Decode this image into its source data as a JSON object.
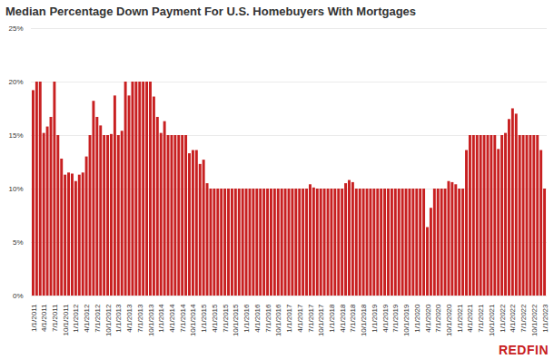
{
  "chart_data": {
    "type": "bar",
    "title": "Median Percentage Down Payment For U.S. Homebuyers With Mortgages",
    "brand": "REDFIN",
    "color": "#c82021",
    "grid": true,
    "ylim": [
      0,
      25
    ],
    "yticks": [
      {
        "value": 0,
        "label": "0%"
      },
      {
        "value": 5,
        "label": "5%"
      },
      {
        "value": 10,
        "label": "10%"
      },
      {
        "value": 15,
        "label": "15%"
      },
      {
        "value": 20,
        "label": "20%"
      },
      {
        "value": 25,
        "label": "25%"
      }
    ],
    "categories": [
      "1/1/2011",
      null,
      null,
      "4/1/2011",
      null,
      null,
      "7/1/2011",
      null,
      null,
      "10/1/2011",
      null,
      null,
      "1/1/2012",
      null,
      null,
      "4/1/2012",
      null,
      null,
      "7/1/2012",
      null,
      null,
      "10/1/2012",
      null,
      null,
      "1/1/2013",
      null,
      null,
      "4/1/2013",
      null,
      null,
      "7/1/2013",
      null,
      null,
      "10/1/2013",
      null,
      null,
      "1/1/2014",
      null,
      null,
      "4/1/2014",
      null,
      null,
      "7/1/2014",
      null,
      null,
      "10/1/2014",
      null,
      null,
      "1/1/2015",
      null,
      null,
      "4/1/2015",
      null,
      null,
      "7/1/2015",
      null,
      null,
      "10/1/2015",
      null,
      null,
      "1/1/2016",
      null,
      null,
      "4/1/2016",
      null,
      null,
      "7/1/2016",
      null,
      null,
      "10/1/2016",
      null,
      null,
      "1/1/2017",
      null,
      null,
      "4/1/2017",
      null,
      null,
      "7/1/2017",
      null,
      null,
      "10/1/2017",
      null,
      null,
      "1/1/2018",
      null,
      null,
      "4/1/2018",
      null,
      null,
      "7/1/2018",
      null,
      null,
      "10/1/2018",
      null,
      null,
      "1/1/2019",
      null,
      null,
      "4/1/2019",
      null,
      null,
      "7/1/2019",
      null,
      null,
      "10/1/2019",
      null,
      null,
      "1/1/2020",
      null,
      null,
      "4/1/2020",
      null,
      null,
      "7/1/2020",
      null,
      null,
      "10/1/2020",
      null,
      null,
      "1/1/2021",
      null,
      null,
      "4/1/2021",
      null,
      null,
      "7/1/2021",
      null,
      null,
      "10/1/2021",
      null,
      null,
      "1/1/2022",
      null,
      null,
      "4/1/2022",
      null,
      null,
      "7/1/2022",
      null,
      null,
      "10/1/2022",
      null,
      null,
      "1/1/2023"
    ],
    "values": [
      19.2,
      20,
      20,
      15.2,
      15.8,
      16.7,
      20,
      15,
      12.8,
      11.3,
      11.5,
      11.4,
      10.7,
      11.3,
      11.5,
      13,
      15,
      18.2,
      16.7,
      15.9,
      15,
      15,
      15.1,
      18.7,
      15,
      15.4,
      20,
      18.7,
      20,
      20,
      20,
      20,
      20,
      20,
      18.6,
      16.7,
      15.2,
      16.3,
      15,
      15,
      15,
      15,
      15,
      15,
      13.3,
      13.6,
      13.6,
      12.3,
      12.7,
      10.5,
      10,
      10,
      10,
      10,
      10,
      10,
      10,
      10,
      10,
      10,
      10,
      10,
      10,
      10,
      10,
      10,
      10,
      10,
      10,
      10,
      10,
      10,
      10,
      10,
      10,
      10,
      10,
      10,
      10.4,
      10.1,
      10,
      10,
      10,
      10,
      10,
      10,
      10,
      10,
      10.5,
      10.8,
      10.6,
      10,
      10,
      10,
      10,
      10,
      10,
      10,
      10,
      10,
      10,
      10,
      10,
      10,
      10,
      10,
      10,
      10,
      10,
      10,
      10,
      6.4,
      8.2,
      10,
      10,
      10,
      10,
      10.7,
      10.6,
      10.4,
      10,
      10,
      13.6,
      15,
      15,
      15,
      15,
      15,
      15,
      15,
      15,
      13.7,
      15,
      15.2,
      16.5,
      17.5,
      17,
      15,
      15,
      15,
      15,
      15,
      15,
      13.6,
      10
    ]
  }
}
